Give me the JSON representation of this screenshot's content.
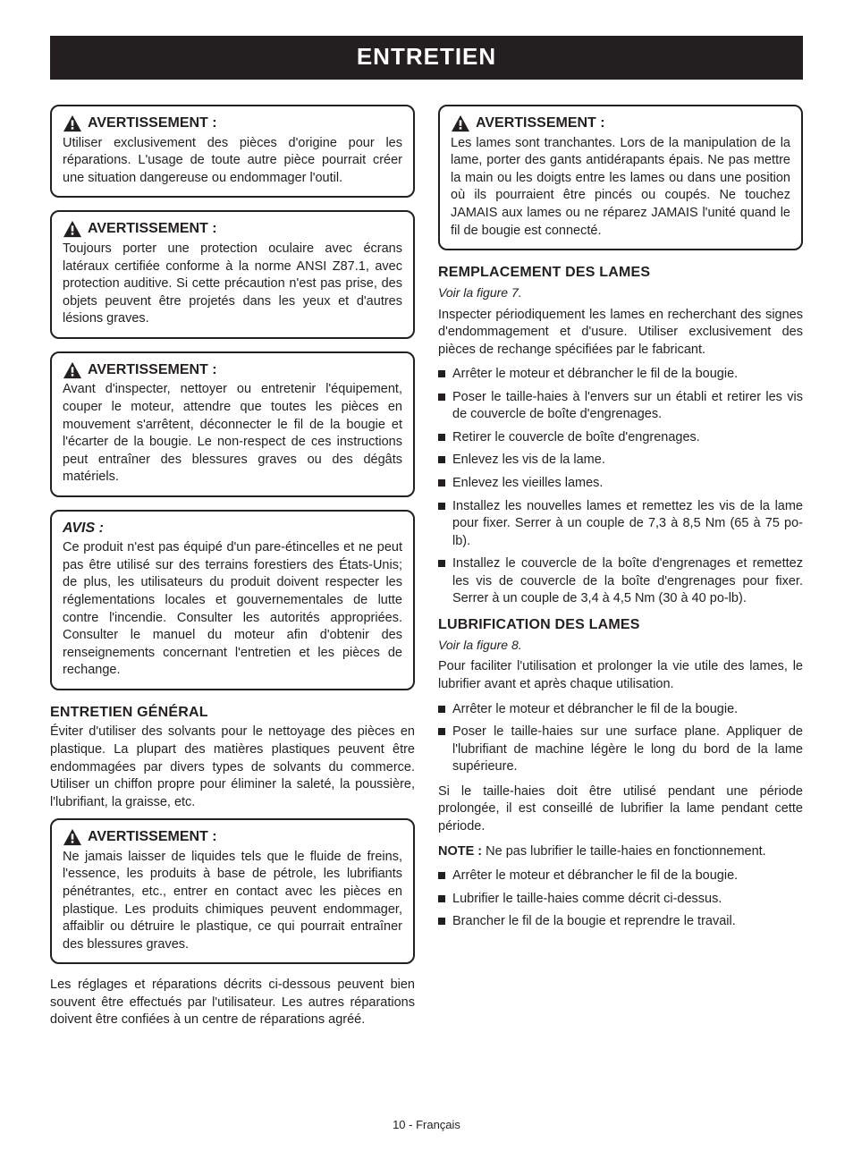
{
  "banner": "ENTRETIEN",
  "warning_label": "AVERTISSEMENT :",
  "notice_label": "AVIS :",
  "left": {
    "warn1": "Utiliser exclusivement des pièces d'origine pour les réparations. L'usage de toute autre pièce pourrait créer une situation dangereuse ou endommager l'outil.",
    "warn2": "Toujours porter une protection oculaire avec écrans latéraux certifiée conforme à la norme ANSI Z87.1, avec protection auditive. Si cette précaution n'est pas prise, des objets peuvent être projetés dans les yeux et d'autres lésions graves.",
    "warn3": "Avant d'inspecter, nettoyer ou entretenir l'équipement, couper le moteur, attendre que toutes les pièces en mouvement s'arrêtent, déconnecter le fil de la bougie et l'écarter de la bougie. Le non-respect de ces instructions peut entraîner des blessures graves ou des dégâts matériels.",
    "notice": "Ce produit n'est pas équipé d'un pare-étincelles et ne peut pas être utilisé sur des terrains forestiers des États-Unis; de plus, les utilisateurs du produit doivent respecter les réglementations locales et gouvernementales de lutte contre l'incendie. Consulter les autorités appropriées. Consulter le manuel du moteur afin d'obtenir des renseignements concernant l'entretien et les pièces de rechange.",
    "sec1_title": "ENTRETIEN GÉNÉRAL",
    "sec1_body": "Éviter d'utiliser des solvants pour le nettoyage des pièces en plastique. La plupart des matières plastiques peuvent être endommagées par divers types de solvants du commerce. Utiliser un chiffon propre pour éliminer la saleté, la poussière, l'lubrifiant, la graisse, etc.",
    "warn4": "Ne jamais laisser de liquides tels que le fluide de freins, l'essence, les produits à base de pétrole, les lubrifiants pénétrantes, etc., entrer en contact avec les pièces en plastique. Les produits chimiques peuvent endommager, affaiblir ou détruire le plastique, ce qui pourrait entraîner des blessures graves.",
    "tail": "Les réglages et réparations décrits ci-dessous peuvent bien souvent être effectués par l'utilisateur. Les autres réparations doivent être confiées à un centre de réparations agréé."
  },
  "right": {
    "warn5": "Les lames sont tranchantes. Lors de la manipulation de la lame, porter des gants antidérapants épais. Ne pas mettre la main ou les doigts entre les lames ou dans une position où ils pourraient être pincés ou coupés. Ne touchez JAMAIS aux lames ou ne réparez JAMAIS l'unité quand le fil de bougie est connecté.",
    "sec2_title": "REMPLACEMENT DES LAMES",
    "fig7": "Voir la figure 7.",
    "sec2_body": "Inspecter périodiquement les lames en recherchant des signes d'endommagement et d'usure. Utiliser exclusivement des pièces de rechange spécifiées par le fabricant.",
    "sec2_items": [
      "Arrêter le moteur et débrancher le fil de la bougie.",
      "Poser le taille-haies à l'envers sur un établi et retirer les vis de couvercle de boîte d'engrenages.",
      "Retirer le couvercle de boîte d'engrenages.",
      "Enlevez les vis de la lame.",
      "Enlevez les vieilles lames.",
      "Installez les nouvelles lames et remettez les vis de la lame pour fixer. Serrer à un couple de 7,3 à 8,5 Nm (65 à 75 po-lb).",
      "Installez le couvercle de la boîte d'engrenages et remettez les vis de couvercle de la boîte d'engrenages pour fixer. Serrer à un couple de 3,4 à 4,5 Nm (30 à 40 po-lb)."
    ],
    "sec3_title": "LUBRIFICATION DES LAMES",
    "fig8": "Voir la figure 8.",
    "sec3_body": "Pour faciliter l'utilisation et prolonger la vie utile des lames, le lubrifier avant et après chaque utilisation.",
    "sec3_items_a": [
      "Arrêter le moteur et débrancher le fil de la bougie.",
      "Poser le taille-haies sur une surface plane. Appliquer de l'lubrifiant de machine légère le long du bord de la lame supérieure."
    ],
    "sec3_body2": "Si le taille-haies doit être utilisé pendant une période prolongée, il est conseillé de lubrifier la lame pendant cette période.",
    "note_label": "NOTE : ",
    "note_body": "Ne pas lubrifier le taille-haies en fonctionnement.",
    "sec3_items_b": [
      "Arrêter le moteur et débrancher le fil de la bougie.",
      "Lubrifier le taille-haies comme décrit ci-dessus.",
      "Brancher le fil de la bougie et reprendre le travail."
    ]
  },
  "footer": "10 - Français"
}
